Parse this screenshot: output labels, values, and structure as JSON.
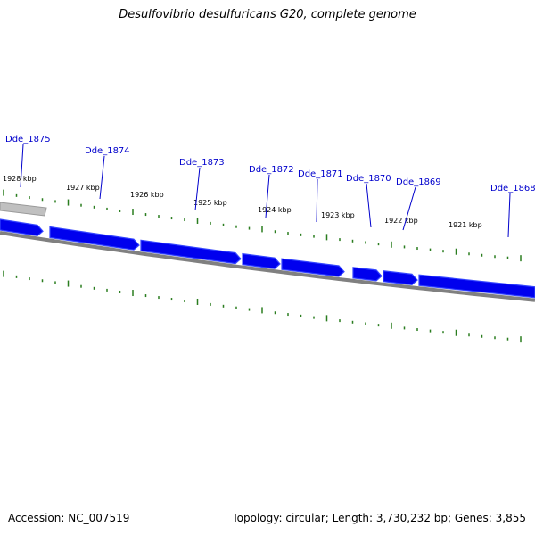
{
  "title": "Desulfovibrio desulfuricans G20, complete genome",
  "footer": {
    "accession": "Accession: NC_007519",
    "summary": "Topology: circular; Length: 3,730,232 bp; Genes: 3,855"
  },
  "colors": {
    "gene_fill": "#0000ee",
    "gene_light": "#3344ff",
    "gene_label": "#0000cc",
    "tick": "#2a7d1f",
    "backbone": "#808080",
    "backbone_light": "#c0c0c0"
  },
  "kbp_labels": [
    "1928 kbp",
    "1927 kbp",
    "1926 kbp",
    "1925 kbp",
    "1924 kbp",
    "1923 kbp",
    "1922 kbp",
    "1921 kbp"
  ],
  "genes": [
    {
      "label": "Dde_1875"
    },
    {
      "label": "Dde_1874"
    },
    {
      "label": "Dde_1873"
    },
    {
      "label": "Dde_1872"
    },
    {
      "label": "Dde_1871"
    },
    {
      "label": "Dde_1870"
    },
    {
      "label": "Dde_1869"
    },
    {
      "label": "Dde_1868"
    }
  ]
}
